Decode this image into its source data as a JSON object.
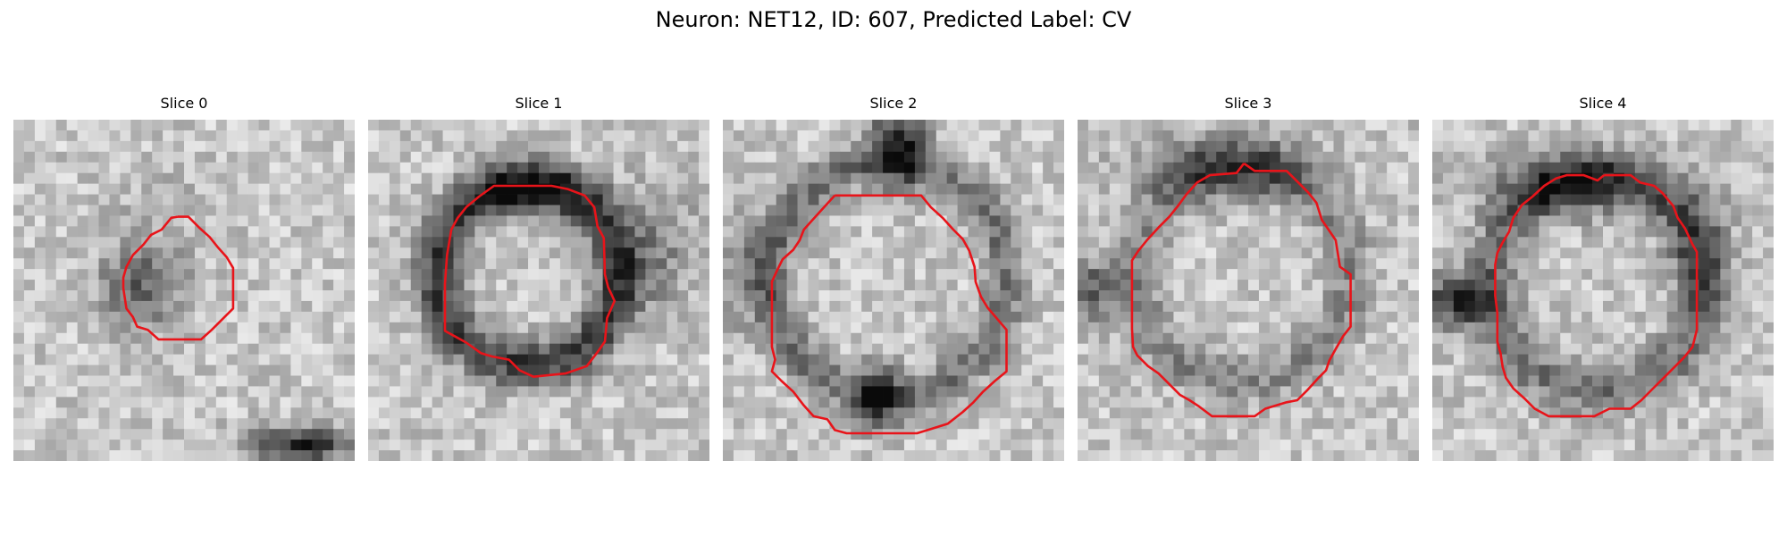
{
  "figure": {
    "title": "Neuron: NET12, ID: 607, Predicted Label: CV"
  },
  "panels": [
    {
      "title": "Slice 0"
    },
    {
      "title": "Slice 1"
    },
    {
      "title": "Slice 2"
    },
    {
      "title": "Slice 3"
    },
    {
      "title": "Slice 4"
    }
  ],
  "colors": {
    "contour": "#e8141a",
    "background": "#ffffff",
    "colormap": "grayscale"
  }
}
